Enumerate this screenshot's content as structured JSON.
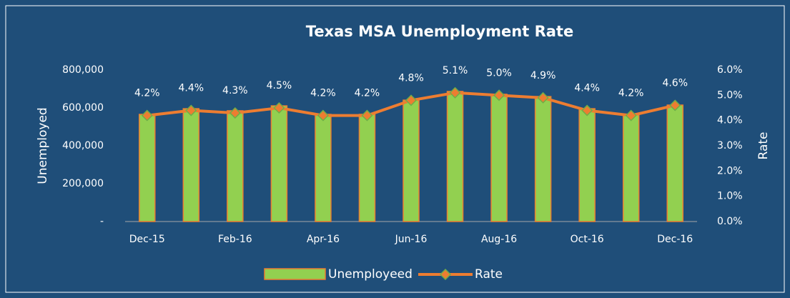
{
  "chart_data": {
    "type": "bar",
    "title": "Texas  MSA Unemployment Rate",
    "y_label": "Unemployed",
    "y2_label": "Rate",
    "categories": [
      "Dec-15",
      null,
      "Feb-16",
      null,
      "Apr-16",
      null,
      "Jun-16",
      null,
      "Aug-16",
      null,
      "Oct-16",
      null,
      "Dec-16"
    ],
    "series": [
      {
        "name": "Unemployeed",
        "type": "bar",
        "color": "#92d050",
        "edge_color": "#ed7d31",
        "values": [
          566000,
          596000,
          585000,
          611000,
          566000,
          566000,
          641000,
          687000,
          672000,
          660000,
          596000,
          566000,
          615000
        ]
      },
      {
        "name": "Rate",
        "type": "line",
        "axis": "y2",
        "color": "#ed7d31",
        "marker_edge_color": "#70ad47",
        "values": [
          4.2,
          4.4,
          4.3,
          4.5,
          4.2,
          4.2,
          4.8,
          5.1,
          5.0,
          4.9,
          4.4,
          4.2,
          4.6
        ],
        "value_labels": [
          "4.2%",
          "4.4%",
          "4.3%",
          "4.5%",
          "4.2%",
          "4.2%",
          "4.8%",
          "5.1%",
          "5.0%",
          "4.9%",
          "4.4%",
          "4.2%",
          "4.6%"
        ]
      }
    ],
    "ylim": [
      0,
      800000
    ],
    "yticks": [
      {
        "value": 0,
        "label": "-"
      },
      {
        "value": 200000,
        "label": "200,000"
      },
      {
        "value": 400000,
        "label": "400,000"
      },
      {
        "value": 600000,
        "label": "600,000"
      },
      {
        "value": 800000,
        "label": "800,000"
      }
    ],
    "y2lim": [
      0,
      6
    ],
    "y2ticks": [
      {
        "value": 0,
        "label": "0.0%"
      },
      {
        "value": 1,
        "label": "1.0%"
      },
      {
        "value": 2,
        "label": "2.0%"
      },
      {
        "value": 3,
        "label": "3.0%"
      },
      {
        "value": 4,
        "label": "4.0%"
      },
      {
        "value": 5,
        "label": "5.0%"
      },
      {
        "value": 6,
        "label": "6.0%"
      }
    ],
    "grid": false,
    "legend": "bottom"
  }
}
